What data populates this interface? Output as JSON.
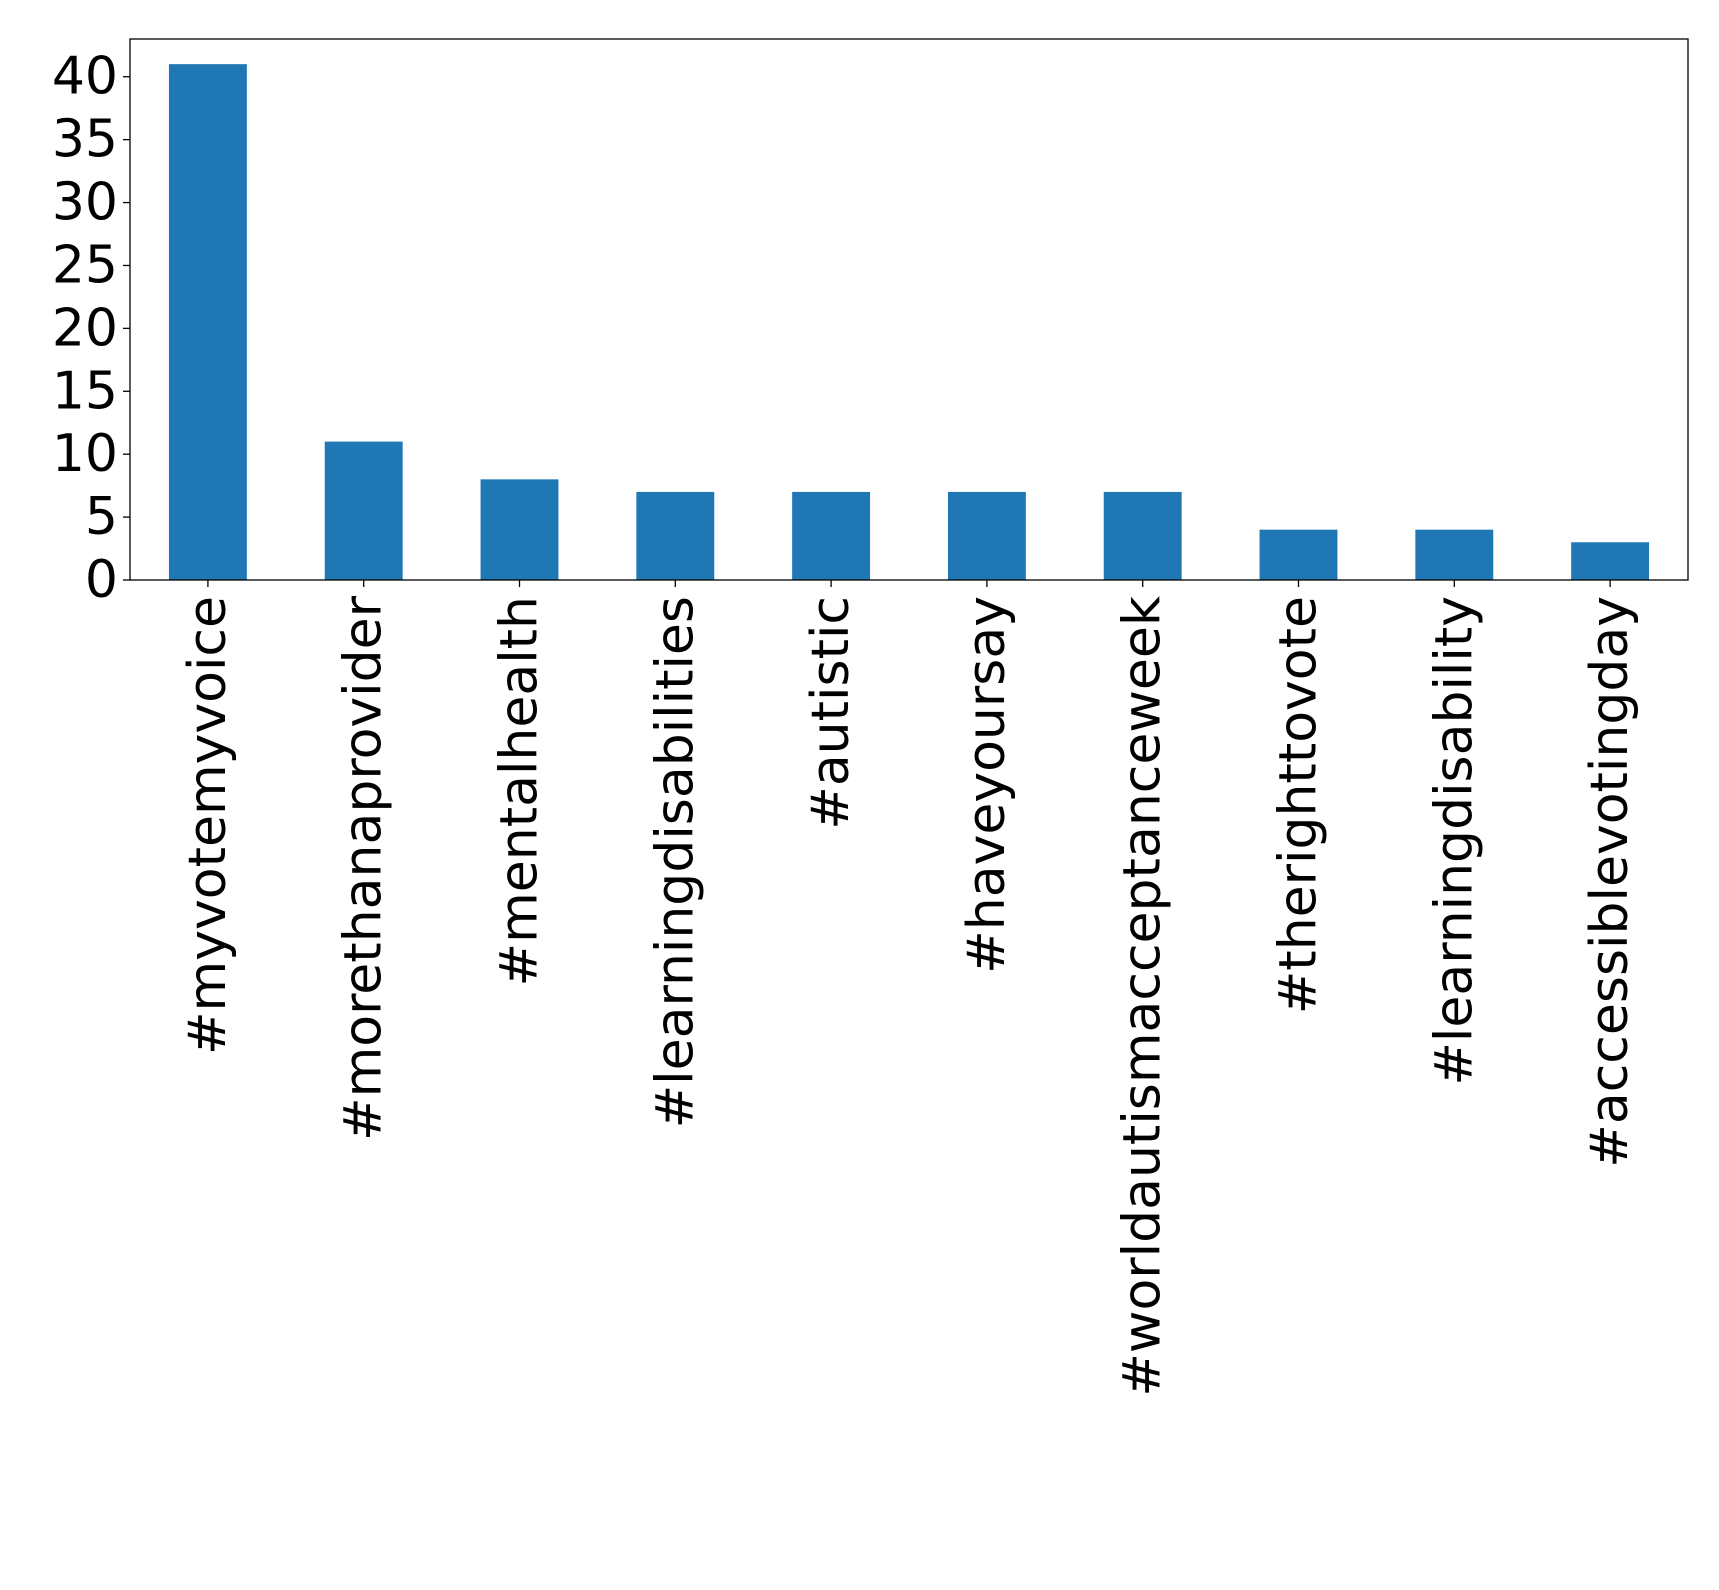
{
  "chart_data": {
    "type": "bar",
    "title": "",
    "xlabel": "",
    "ylabel": "",
    "categories": [
      "#myvotemyvoice",
      "#morethanaprovider",
      "#mentalhealth",
      "#learningdisabilities",
      "#autistic",
      "#haveyoursay",
      "#worldautismacceptanceweek",
      "#therighttovote",
      "#learningdisability",
      "#accessiblevotingday"
    ],
    "values": [
      41,
      11,
      8,
      7,
      7,
      7,
      7,
      4,
      4,
      3
    ],
    "ylim": [
      0,
      43
    ],
    "yticks": [
      0,
      5,
      10,
      15,
      20,
      25,
      30,
      35,
      40
    ],
    "grid": false,
    "legend": "none",
    "bar_color": "#1f77b4"
  }
}
